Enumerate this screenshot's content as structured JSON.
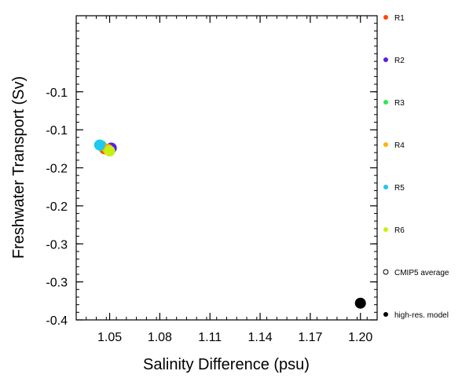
{
  "chart_data": {
    "type": "scatter",
    "title": "",
    "xlabel": "Salinity Difference (psu)",
    "ylabel": "Freshwater Transport (Sv)",
    "xlim": [
      1.03,
      1.21
    ],
    "ylim": [
      -0.4,
      0.0
    ],
    "xticks": [
      1.05,
      1.08,
      1.11,
      1.14,
      1.17,
      1.2
    ],
    "xtick_labels": [
      "1.05",
      "1.08",
      "1.11",
      "1.14",
      "1.17",
      "1.20"
    ],
    "yticks": [
      -0.1,
      -0.15,
      -0.2,
      -0.25,
      -0.3,
      -0.35,
      -0.4
    ],
    "ytick_labels": [
      "-0.1",
      "-0.1",
      "-0.2",
      "-0.2",
      "-0.3",
      "-0.3",
      "-0.4"
    ],
    "grid": false,
    "legend_position": "right",
    "series": [
      {
        "name": "R1",
        "color": "#ff4500",
        "marker": "filled",
        "points": [
          [
            1.047,
            -0.175
          ]
        ]
      },
      {
        "name": "R2",
        "color": "#5a1ee6",
        "marker": "filled",
        "points": [
          [
            1.051,
            -0.174
          ]
        ]
      },
      {
        "name": "R3",
        "color": "#32e650",
        "marker": "filled",
        "points": [
          [
            1.045,
            -0.171
          ]
        ]
      },
      {
        "name": "R4",
        "color": "#ffb400",
        "marker": "filled",
        "points": [
          [
            1.049,
            -0.176
          ]
        ]
      },
      {
        "name": "R5",
        "color": "#1ec8f0",
        "marker": "filled",
        "points": [
          [
            1.044,
            -0.17
          ]
        ]
      },
      {
        "name": "R6",
        "color": "#c8f014",
        "marker": "filled",
        "points": [
          [
            1.05,
            -0.178
          ]
        ]
      },
      {
        "name": "CMIP5 average",
        "color": "#000000",
        "marker": "open",
        "points": []
      },
      {
        "name": "high-res. model",
        "color": "#000000",
        "marker": "filled",
        "points": [
          [
            1.2,
            -0.378
          ]
        ]
      }
    ]
  }
}
